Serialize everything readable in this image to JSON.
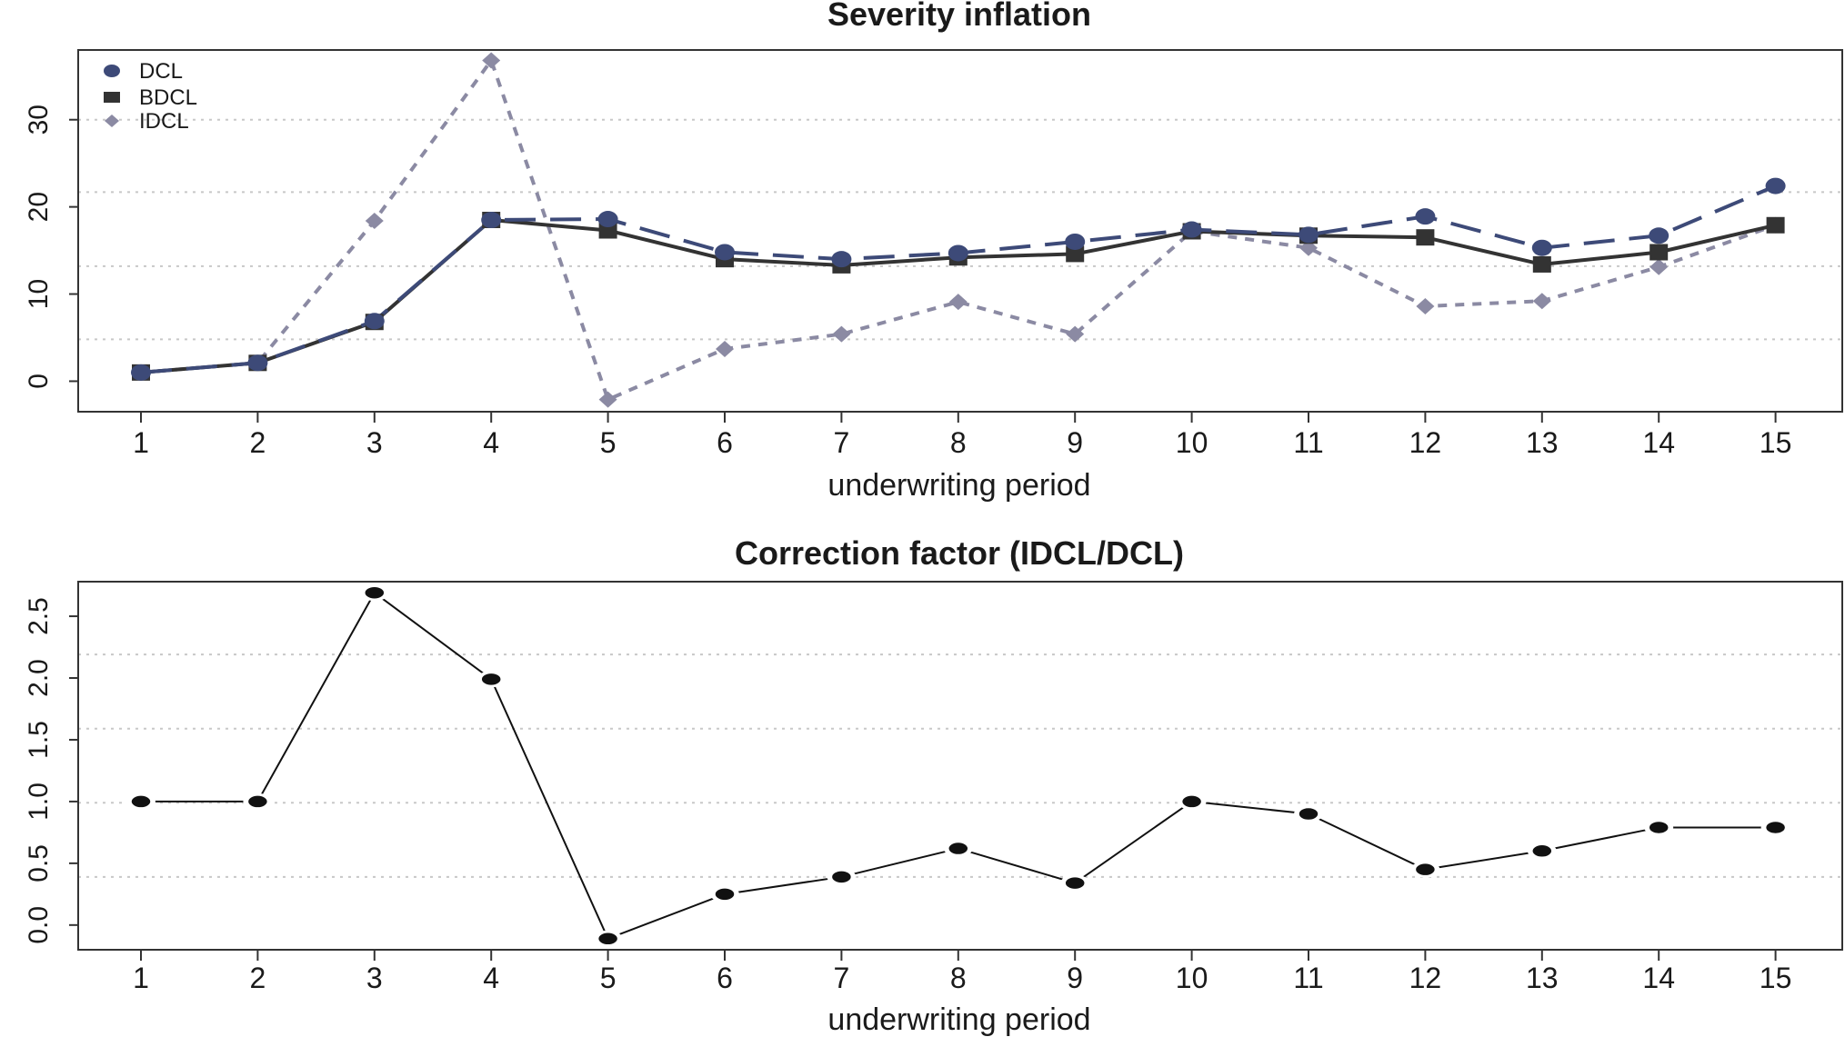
{
  "chart_data": [
    {
      "type": "line",
      "title": "Severity inflation",
      "xlabel": "underwriting period",
      "ylabel": "",
      "categories": [
        "1",
        "2",
        "3",
        "4",
        "5",
        "6",
        "7",
        "8",
        "9",
        "10",
        "11",
        "12",
        "13",
        "14",
        "15"
      ],
      "ylim": [
        -3.5,
        38
      ],
      "yticks": [
        "0",
        "10",
        "20",
        "30"
      ],
      "grid": "horizontal dotted",
      "legend_position": "top-left",
      "series": [
        {
          "name": "DCL",
          "color": "#3d4a78",
          "line": "long-dash",
          "marker": "circle",
          "values": [
            1.0,
            2.1,
            6.9,
            18.5,
            18.6,
            14.8,
            14.0,
            14.7,
            16.0,
            17.4,
            16.8,
            18.9,
            15.3,
            16.7,
            22.4
          ]
        },
        {
          "name": "BDCL",
          "color": "#333333",
          "line": "solid",
          "marker": "square",
          "values": [
            1.0,
            2.1,
            6.8,
            18.5,
            17.3,
            14.0,
            13.3,
            14.2,
            14.6,
            17.2,
            16.7,
            16.5,
            13.4,
            14.8,
            17.9
          ]
        },
        {
          "name": "IDCL",
          "color": "#8b8aa3",
          "line": "dashed",
          "marker": "diamond",
          "values": [
            1.0,
            2.1,
            18.4,
            36.8,
            -2.1,
            3.7,
            5.4,
            9.1,
            5.4,
            17.2,
            15.3,
            8.6,
            9.2,
            13.1,
            17.9
          ]
        }
      ]
    },
    {
      "type": "line",
      "title": "Correction factor (IDCL/DCL)",
      "xlabel": "underwriting period",
      "ylabel": "",
      "categories": [
        "1",
        "2",
        "3",
        "4",
        "5",
        "6",
        "7",
        "8",
        "9",
        "10",
        "11",
        "12",
        "13",
        "14",
        "15"
      ],
      "ylim": [
        -0.2,
        2.78
      ],
      "yticks": [
        "0.0",
        "0.5",
        "1.0",
        "1.5",
        "2.0",
        "2.5"
      ],
      "grid": "horizontal dotted",
      "series": [
        {
          "color": "#111111",
          "line": "solid",
          "marker": "circle",
          "values": [
            1.0,
            1.0,
            2.69,
            1.99,
            -0.11,
            0.25,
            0.39,
            0.62,
            0.34,
            1.0,
            0.9,
            0.45,
            0.6,
            0.79,
            0.79
          ]
        }
      ]
    }
  ]
}
